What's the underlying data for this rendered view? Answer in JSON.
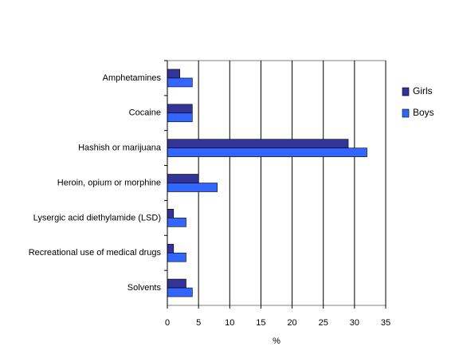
{
  "chart_data": {
    "type": "bar",
    "xlabel": "%",
    "categories": [
      "Amphetamines",
      "Cocaine",
      "Hashish or marijuana",
      "Heroin, opium or morphine",
      "Lysergic acid diethylamide (LSD)",
      "Recreational use of medical drugs",
      "Solvents"
    ],
    "series": [
      {
        "name": "Girls",
        "color": "#333399",
        "values": [
          2,
          4,
          29,
          5,
          1,
          1,
          3
        ]
      },
      {
        "name": "Boys",
        "color": "#3366ff",
        "values": [
          4,
          4,
          32,
          8,
          3,
          3,
          4
        ]
      }
    ],
    "xlim": [
      0,
      35
    ],
    "xticks": [
      0,
      5,
      10,
      15,
      20,
      25,
      30,
      35
    ],
    "grid": true
  }
}
